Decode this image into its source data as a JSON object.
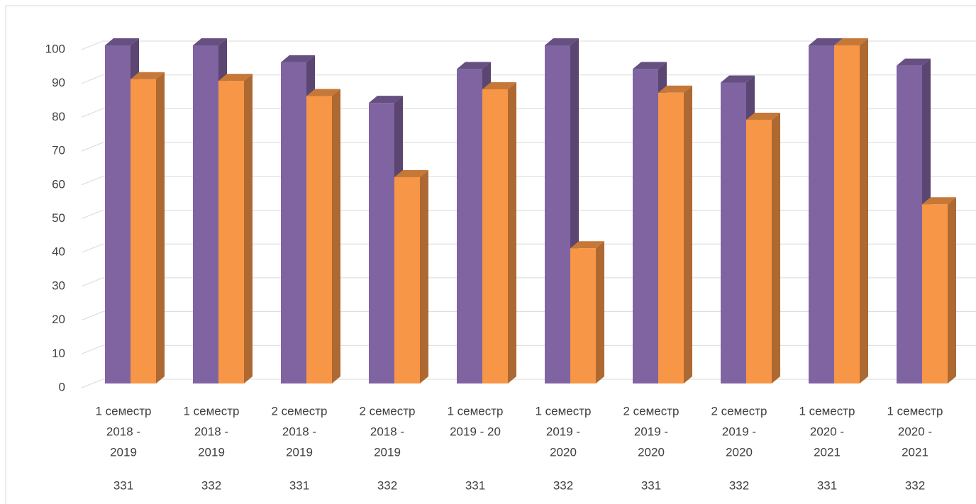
{
  "chart_data": {
    "type": "bar3d",
    "categories": [
      [
        "1 семестр",
        "2018 -",
        "2019"
      ],
      [
        "1 семестр",
        "2018 -",
        "2019"
      ],
      [
        "2 семестр",
        "2018 -",
        "2019"
      ],
      [
        "2 семестр",
        "2018 -",
        "2019"
      ],
      [
        "1 семестр",
        "2019 - 20"
      ],
      [
        "1 семестр",
        "2019 -",
        "2020"
      ],
      [
        "2 семестр",
        "2019 -",
        "2020"
      ],
      [
        "2 семестр",
        "2019 -",
        "2020"
      ],
      [
        "1 семестр",
        "2020 -",
        "2021"
      ],
      [
        "1 семестр",
        "2020 -",
        "2021"
      ]
    ],
    "groups": [
      "331",
      "332",
      "331",
      "332",
      "331",
      "332",
      "331",
      "332",
      "331",
      "332"
    ],
    "series": [
      {
        "color": "#8064a2",
        "values": [
          100,
          100,
          95,
          83,
          93,
          100,
          93,
          89,
          100,
          94
        ]
      },
      {
        "color": "#f79646",
        "values": [
          90,
          89.5,
          85,
          61,
          87,
          40,
          86,
          78,
          100,
          53
        ]
      }
    ],
    "ylim": [
      0,
      100
    ],
    "yticks": [
      0,
      10,
      20,
      30,
      40,
      50,
      60,
      70,
      80,
      90,
      100
    ],
    "grid": true
  }
}
